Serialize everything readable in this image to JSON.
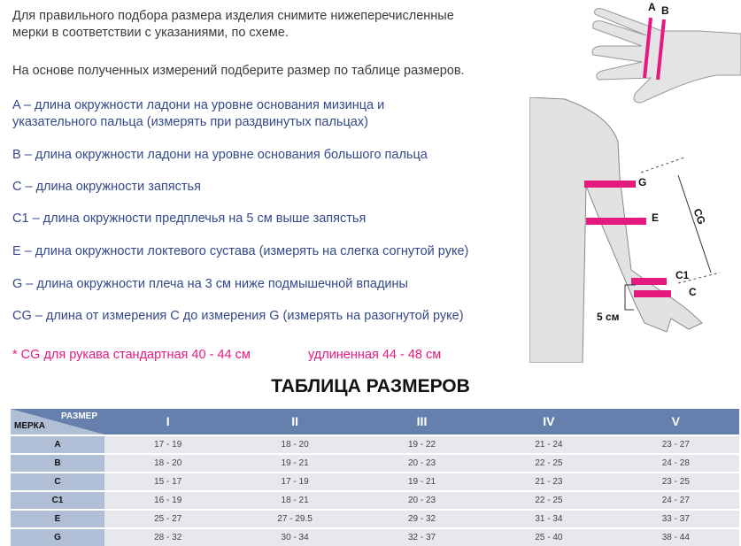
{
  "intro": [
    "Для правильного подбора размера изделия снимите нижеперечисленные",
    "мерки в соответствии с указаниями, по схеме."
  ],
  "instruction": "На основе полученных измерений подберите размер по таблице размеров.",
  "measures": [
    [
      "A – длина окружности ладони на уровне основания мизинца и",
      "указательного пальца (измерять при раздвинутых пальцах)"
    ],
    [
      "B – длина окружности ладони на уровне основания большого пальца"
    ],
    [
      "C – длина окружности запястья"
    ],
    [
      "C1 – длина окружности предплечья на 5 см выше запястья"
    ],
    [
      "E – длина окружности локтевого сустава (измерять на слегка согнутой руке)"
    ],
    [
      "G – длина окружности плеча на 3 см ниже подмышечной впадины"
    ],
    [
      "CG – длина от измерения C до измерения G (измерять на разогнутой руке)"
    ]
  ],
  "note": {
    "standard": "* CG для рукава  стандартная 40 - 44 см",
    "extended": "удлиненная 44 - 48 см"
  },
  "diagram": {
    "labels": {
      "a": "A",
      "b": "B",
      "g": "G",
      "e": "E",
      "cg": "CG",
      "c1": "C1",
      "c": "C",
      "five_cm": "5 см"
    },
    "accent": "#e6197f"
  },
  "table": {
    "title": "ТАБЛИЦА РАЗМЕРОВ",
    "corner_size": "РАЗМЕР",
    "corner_measure": "МЕРКА",
    "sizes": [
      "I",
      "II",
      "III",
      "IV",
      "V"
    ],
    "rows": [
      {
        "key": "A",
        "values": [
          "17 - 19",
          "18 - 20",
          "19 - 22",
          "21 - 24",
          "23 - 27"
        ]
      },
      {
        "key": "B",
        "values": [
          "18 - 20",
          "19 - 21",
          "20 - 23",
          "22 - 25",
          "24 - 28"
        ]
      },
      {
        "key": "C",
        "values": [
          "15 - 17",
          "17 - 19",
          "19 - 21",
          "21 - 23",
          "23 - 25"
        ]
      },
      {
        "key": "C1",
        "values": [
          "16 - 19",
          "18 - 21",
          "20 - 23",
          "22 - 25",
          "24 - 27"
        ]
      },
      {
        "key": "E",
        "values": [
          "25 - 27",
          "27 - 29.5",
          "29 - 32",
          "31 - 34",
          "33 - 37"
        ]
      },
      {
        "key": "G",
        "values": [
          "28 - 32",
          "30 - 34",
          "32 - 37",
          "25 - 40",
          "38 - 44"
        ]
      }
    ],
    "header_color": "#6680ad",
    "key_color": "#b1bfd6"
  }
}
